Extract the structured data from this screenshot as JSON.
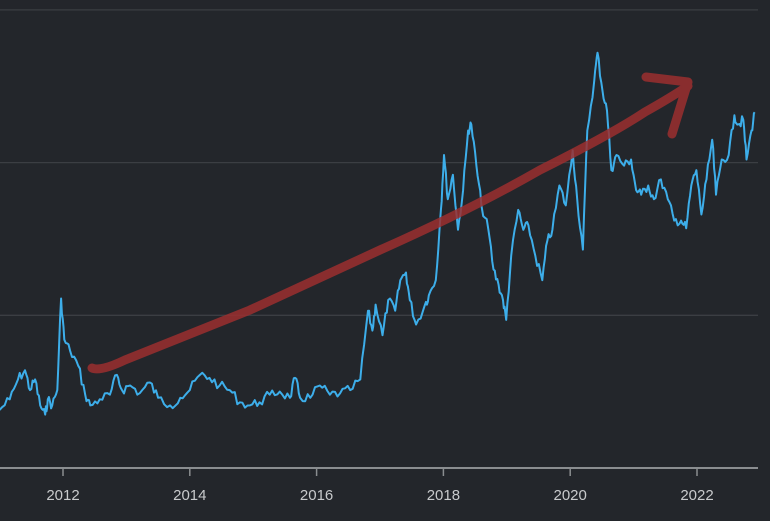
{
  "chart_data": {
    "type": "line",
    "title": "",
    "xlabel": "",
    "ylabel": "",
    "xlim": [
      2011.0,
      2022.95
    ],
    "ylim": [
      0,
      3
    ],
    "grid": true,
    "y_tick_labels_shown": false,
    "x_ticks": [
      2012,
      2014,
      2016,
      2018,
      2020,
      2022
    ],
    "x_tick_labels": [
      "2012",
      "2014",
      "2016",
      "2018",
      "2020",
      "2022"
    ],
    "colors": {
      "background": "#23262b",
      "line": "#3daeea",
      "grid": "#3b3e43",
      "axis": "#8a8d90",
      "annotation_arrow": "#9b2f2f"
    },
    "annotation": "hand-drawn upward trend arrow",
    "series": [
      {
        "x": [
          2011.0,
          2011.16,
          2011.29,
          2011.4,
          2011.48,
          2011.56,
          2011.64,
          2011.72,
          2011.76,
          2011.83,
          2011.91,
          2011.97,
          2012.02,
          2012.11,
          2012.24,
          2012.35,
          2012.43,
          2012.58,
          2012.74,
          2012.85,
          2012.93,
          2013.06,
          2013.21,
          2013.37,
          2013.5,
          2013.69,
          2013.85,
          2014.0,
          2014.16,
          2014.31,
          2014.47,
          2014.63,
          2014.79,
          2014.95,
          2015.1,
          2015.26,
          2015.42,
          2015.58,
          2015.66,
          2015.74,
          2015.9,
          2016.05,
          2016.21,
          2016.37,
          2016.53,
          2016.69,
          2016.81,
          2016.88,
          2016.93,
          2017.04,
          2017.13,
          2017.24,
          2017.32,
          2017.41,
          2017.47,
          2017.57,
          2017.71,
          2017.77,
          2017.88,
          2017.96,
          2018.01,
          2018.07,
          2018.15,
          2018.23,
          2018.31,
          2018.39,
          2018.44,
          2018.52,
          2018.6,
          2018.71,
          2018.79,
          2018.87,
          2018.94,
          2018.99,
          2019.07,
          2019.18,
          2019.26,
          2019.34,
          2019.45,
          2019.56,
          2019.64,
          2019.72,
          2019.83,
          2019.93,
          2020.04,
          2020.11,
          2020.2,
          2020.27,
          2020.38,
          2020.43,
          2020.51,
          2020.58,
          2020.65,
          2020.73,
          2020.85,
          2020.96,
          2021.04,
          2021.12,
          2021.23,
          2021.32,
          2021.43,
          2021.54,
          2021.64,
          2021.75,
          2021.83,
          2021.91,
          2021.99,
          2022.07,
          2022.15,
          2022.24,
          2022.3,
          2022.39,
          2022.5,
          2022.59,
          2022.65,
          2022.73,
          2022.78,
          2022.86,
          2022.91
        ],
        "y": [
          0.38,
          0.45,
          0.58,
          0.64,
          0.51,
          0.58,
          0.41,
          0.35,
          0.45,
          0.41,
          0.51,
          1.11,
          0.84,
          0.77,
          0.67,
          0.48,
          0.41,
          0.45,
          0.48,
          0.61,
          0.51,
          0.54,
          0.49,
          0.56,
          0.46,
          0.41,
          0.46,
          0.51,
          0.61,
          0.59,
          0.54,
          0.51,
          0.43,
          0.41,
          0.43,
          0.48,
          0.5,
          0.46,
          0.59,
          0.46,
          0.46,
          0.54,
          0.48,
          0.49,
          0.51,
          0.58,
          1.03,
          0.9,
          1.07,
          0.87,
          1.1,
          1.03,
          1.23,
          1.28,
          1.1,
          0.94,
          1.07,
          1.13,
          1.23,
          1.69,
          2.05,
          1.76,
          1.92,
          1.56,
          1.82,
          2.21,
          2.25,
          1.98,
          1.72,
          1.56,
          1.3,
          1.2,
          1.1,
          0.97,
          1.39,
          1.69,
          1.56,
          1.59,
          1.39,
          1.23,
          1.49,
          1.56,
          1.85,
          1.72,
          2.08,
          1.76,
          1.43,
          2.21,
          2.54,
          2.72,
          2.47,
          2.34,
          1.95,
          2.05,
          1.98,
          2.02,
          1.82,
          1.79,
          1.85,
          1.76,
          1.89,
          1.76,
          1.62,
          1.62,
          1.57,
          1.85,
          1.95,
          1.66,
          1.89,
          2.15,
          1.79,
          2.02,
          2.05,
          2.31,
          2.25,
          2.28,
          2.02,
          2.21,
          2.33
        ]
      }
    ]
  }
}
